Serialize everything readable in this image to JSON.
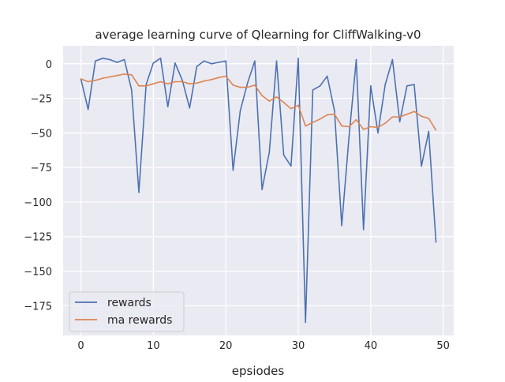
{
  "chart_data": {
    "type": "line",
    "title": "average learning curve of Qlearning for CliffWalking-v0",
    "xlabel": "epsiodes",
    "ylabel": "",
    "xlim": [
      -2.45,
      51.45
    ],
    "ylim": [
      -196.5,
      13
    ],
    "xticks": [
      0,
      10,
      20,
      30,
      40,
      50
    ],
    "yticks": [
      0,
      -25,
      -50,
      -75,
      -100,
      -125,
      -150,
      -175
    ],
    "ytick_labels": [
      "0",
      "−25",
      "−50",
      "−75",
      "−100",
      "−125",
      "−150",
      "−175"
    ],
    "grid": true,
    "legend_position": "lower-left",
    "background": "#eaeaf2",
    "x": [
      0,
      1,
      2,
      3,
      4,
      5,
      6,
      7,
      8,
      9,
      10,
      11,
      12,
      13,
      14,
      15,
      16,
      17,
      18,
      19,
      20,
      21,
      22,
      23,
      24,
      25,
      26,
      27,
      28,
      29,
      30,
      31,
      32,
      33,
      34,
      35,
      36,
      37,
      38,
      39,
      40,
      41,
      42,
      43,
      44,
      45,
      46,
      47,
      48,
      49
    ],
    "series": [
      {
        "name": "rewards",
        "color": "#4c72b0",
        "values": [
          -11,
          -33,
          2,
          4,
          3,
          1,
          3,
          -19,
          -93,
          -15,
          0.5,
          4,
          -31,
          0.5,
          -12,
          -32,
          -2,
          2,
          0,
          1,
          2,
          -77,
          -34,
          -14,
          2,
          -91,
          -64,
          2,
          -66,
          -74,
          4,
          -187,
          -19,
          -16,
          -9,
          -34,
          -117,
          -53,
          3,
          -120,
          -16,
          -50,
          -15,
          3,
          -42,
          -16,
          -15,
          -74,
          -49,
          -129
        ]
      },
      {
        "name": "ma rewards",
        "color": "#dd8452",
        "values": [
          -11,
          -13,
          -12,
          -10.5,
          -9.5,
          -8.5,
          -7.5,
          -8,
          -16,
          -16,
          -14.5,
          -13,
          -14.5,
          -13,
          -13,
          -14.5,
          -14,
          -12.5,
          -11.5,
          -10,
          -9,
          -15.5,
          -17,
          -17,
          -15.5,
          -23,
          -27,
          -24,
          -28,
          -32.5,
          -30,
          -45,
          -42.5,
          -40,
          -37,
          -36.5,
          -45,
          -45.5,
          -40.5,
          -47.5,
          -45.5,
          -46,
          -43,
          -38.5,
          -38.5,
          -36.5,
          -34.5,
          -38,
          -39.5,
          -48
        ]
      }
    ]
  }
}
